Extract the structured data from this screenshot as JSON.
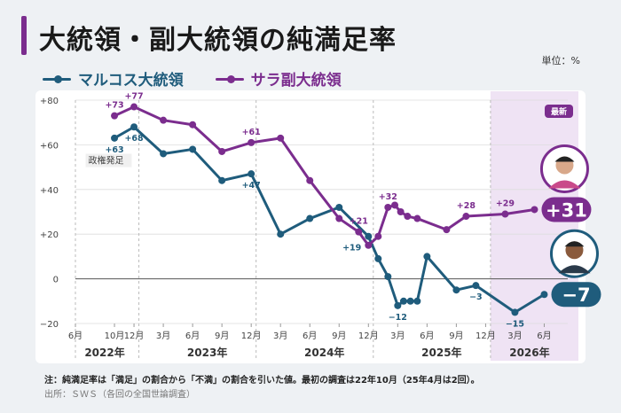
{
  "header": {
    "title": "大統領・副大統領の純満足率",
    "unit": "単位：%"
  },
  "footer": {
    "note": "注：純満足率は「満足」の割合から「不満」の割合を引いた値。最初の調査は22年10月（25年4月は2回）。",
    "source": "出所：ＳＷＳ（各回の全国世論調査）"
  },
  "chart_data": {
    "type": "line",
    "ylim": [
      -20,
      80
    ],
    "yticks": [
      {
        "value": 80,
        "label": "+80"
      },
      {
        "value": 60,
        "label": "+60"
      },
      {
        "value": 40,
        "label": "+40"
      },
      {
        "value": 20,
        "label": "+20"
      },
      {
        "value": 0,
        "label": "0"
      },
      {
        "value": -20,
        "label": "−20"
      }
    ],
    "xticks": [
      {
        "month": 0,
        "label": "6月"
      },
      {
        "month": 4,
        "label": "10月"
      },
      {
        "month": 6,
        "label": "12月"
      },
      {
        "month": 9,
        "label": "3月"
      },
      {
        "month": 12,
        "label": "6月"
      },
      {
        "month": 15,
        "label": "9月"
      },
      {
        "month": 18,
        "label": "12月"
      },
      {
        "month": 21,
        "label": "3月"
      },
      {
        "month": 24,
        "label": "6月"
      },
      {
        "month": 27,
        "label": "9月"
      },
      {
        "month": 30,
        "label": "12月"
      },
      {
        "month": 33,
        "label": "3月"
      },
      {
        "month": 36,
        "label": "6月"
      },
      {
        "month": 39,
        "label": "9月"
      },
      {
        "month": 42,
        "label": "12月"
      },
      {
        "month": 45,
        "label": "3月"
      },
      {
        "month": 48,
        "label": "6月"
      }
    ],
    "years": [
      {
        "label": "2022年",
        "center": 3
      },
      {
        "label": "2023年",
        "center": 13.5
      },
      {
        "label": "2024年",
        "center": 25.5
      },
      {
        "label": "2025年",
        "center": 37.5
      },
      {
        "label": "2026年",
        "center": 46.5
      }
    ],
    "year_dividers": [
      0,
      6.5,
      18.5,
      30.5,
      42.5
    ],
    "month_range": [
      0,
      51.5
    ],
    "highlight": {
      "from_month": 42.5,
      "to_month": 51.5,
      "label": "最新"
    },
    "event": {
      "month": 0.5,
      "label": "政権発足"
    },
    "series": [
      {
        "name": "マルコス大統領",
        "color": "#1f5c7c",
        "points": [
          {
            "month": 4,
            "value": 63
          },
          {
            "month": 6,
            "value": 68
          },
          {
            "month": 9,
            "value": 56
          },
          {
            "month": 12,
            "value": 58
          },
          {
            "month": 15,
            "value": 44
          },
          {
            "month": 18,
            "value": 47
          },
          {
            "month": 21,
            "value": 20
          },
          {
            "month": 24,
            "value": 27
          },
          {
            "month": 27,
            "value": 32
          },
          {
            "month": 30,
            "value": 19
          },
          {
            "month": 31,
            "value": 9
          },
          {
            "month": 32,
            "value": 1
          },
          {
            "month": 33,
            "value": -12
          },
          {
            "month": 33.6,
            "value": -10
          },
          {
            "month": 34.3,
            "value": -10
          },
          {
            "month": 35,
            "value": -10
          },
          {
            "month": 36,
            "value": 10
          },
          {
            "month": 39,
            "value": -5
          },
          {
            "month": 41,
            "value": -3
          },
          {
            "month": 45,
            "value": -15
          },
          {
            "month": 48,
            "value": -7
          }
        ],
        "labels": [
          {
            "month": 4,
            "value": 63,
            "text": "+63",
            "pos": "below"
          },
          {
            "month": 6,
            "value": 68,
            "text": "+68",
            "pos": "below"
          },
          {
            "month": 18,
            "value": 47,
            "text": "+47",
            "pos": "below"
          },
          {
            "month": 30,
            "value": 19,
            "text": "+19",
            "pos": "left"
          },
          {
            "month": 33,
            "value": -12,
            "text": "−12",
            "pos": "below"
          },
          {
            "month": 41,
            "value": -3,
            "text": "−3",
            "pos": "below"
          },
          {
            "month": 45,
            "value": -15,
            "text": "−15",
            "pos": "below"
          }
        ],
        "latest": "−7"
      },
      {
        "name": "サラ副大統領",
        "color": "#7b2d8e",
        "points": [
          {
            "month": 4,
            "value": 73
          },
          {
            "month": 6,
            "value": 77
          },
          {
            "month": 9,
            "value": 71
          },
          {
            "month": 12,
            "value": 69
          },
          {
            "month": 15,
            "value": 57
          },
          {
            "month": 18,
            "value": 61
          },
          {
            "month": 21,
            "value": 63
          },
          {
            "month": 24,
            "value": 44
          },
          {
            "month": 27,
            "value": 27
          },
          {
            "month": 29,
            "value": 21
          },
          {
            "month": 30,
            "value": 15
          },
          {
            "month": 31,
            "value": 19
          },
          {
            "month": 32,
            "value": 32
          },
          {
            "month": 32.7,
            "value": 33
          },
          {
            "month": 33.3,
            "value": 30
          },
          {
            "month": 34,
            "value": 28
          },
          {
            "month": 35,
            "value": 27
          },
          {
            "month": 38,
            "value": 22
          },
          {
            "month": 40,
            "value": 28
          },
          {
            "month": 44,
            "value": 29
          },
          {
            "month": 47,
            "value": 31
          }
        ],
        "labels": [
          {
            "month": 4,
            "value": 73,
            "text": "+73",
            "pos": "above"
          },
          {
            "month": 6,
            "value": 77,
            "text": "+77",
            "pos": "above"
          },
          {
            "month": 18,
            "value": 61,
            "text": "+61",
            "pos": "above"
          },
          {
            "month": 29,
            "value": 21,
            "text": "+21",
            "pos": "above"
          },
          {
            "month": 32,
            "value": 32,
            "text": "+32",
            "pos": "above"
          },
          {
            "month": 40,
            "value": 28,
            "text": "+28",
            "pos": "above"
          },
          {
            "month": 44,
            "value": 29,
            "text": "+29",
            "pos": "above"
          }
        ],
        "latest": "+31"
      }
    ]
  }
}
